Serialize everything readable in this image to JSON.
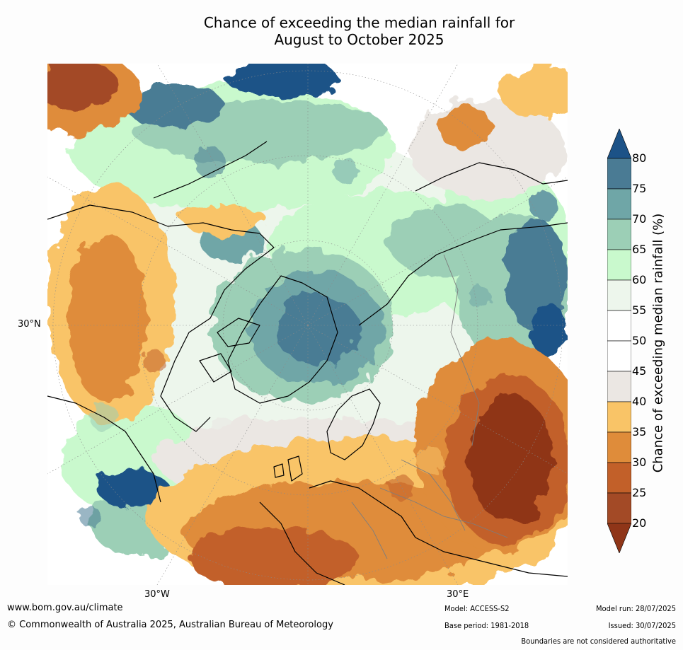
{
  "title": {
    "line1": "Chance of exceeding the median rainfall for",
    "line2": "August to October 2025"
  },
  "map": {
    "projection": "polar stereographic, north pole",
    "lat_label": "30°N",
    "lon_labels": [
      "30°W",
      "30°E"
    ]
  },
  "colorbar": {
    "label": "Chance of exceeding median rainfall (%)",
    "ticks": [
      "80",
      "75",
      "70",
      "65",
      "60",
      "55",
      "50",
      "45",
      "40",
      "35",
      "30",
      "25",
      "20"
    ],
    "colors": [
      "#1c5287",
      "#4a7b94",
      "#6fa6a7",
      "#9ccfb6",
      "#c9f9cd",
      "#edf6ec",
      "#ffffff",
      "#ffffff",
      "#ebe7e3",
      "#f9c467",
      "#df8c3a",
      "#c26029",
      "#a34a26",
      "#8f3518"
    ],
    "extend_top_color": "#1c5287",
    "extend_bottom_color": "#8f3518"
  },
  "footer": {
    "website": "www.bom.gov.au/climate",
    "copyright": "© Commonwealth of Australia 2025, Australian Bureau of Meteorology",
    "model": "Model: ACCESS-S2",
    "base_period": "Base period: 1981-2018",
    "model_run": "Model run: 28/07/2025",
    "issued": "Issued: 30/07/2025",
    "disclaimer": "Boundaries are not considered authoritative"
  }
}
